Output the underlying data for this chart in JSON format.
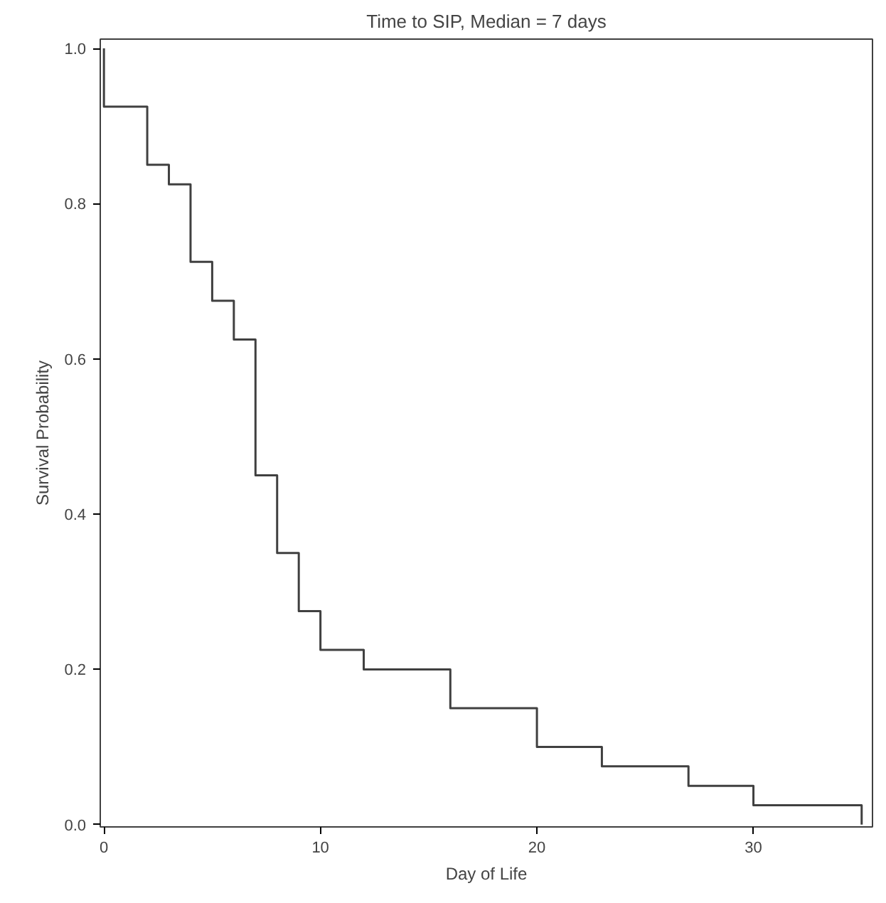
{
  "chart_data": {
    "type": "step",
    "title": "Time to SIP, Median = 7 days",
    "xlabel": "Day of Life",
    "ylabel": "Survival Probability",
    "x": [
      0,
      0,
      2,
      3,
      4,
      5,
      6,
      7,
      8,
      9,
      10,
      12,
      16,
      20,
      23,
      27,
      30,
      35
    ],
    "series": [
      {
        "color": "#404040",
        "values": [
          1.0,
          0.925,
          0.85,
          0.825,
          0.725,
          0.675,
          0.625,
          0.45,
          0.35,
          0.275,
          0.225,
          0.2,
          0.15,
          0.1,
          0.075,
          0.05,
          0.025,
          0.0
        ]
      }
    ],
    "xlim": [
      -0.17,
      35.5
    ],
    "ylim": [
      -0.003,
      1.012
    ],
    "xticks": [
      0,
      10,
      20,
      30
    ],
    "yticks": [
      {
        "value": 0,
        "label": "0.0"
      },
      {
        "value": 0.2,
        "label": "0.2"
      },
      {
        "value": 0.4,
        "label": "0.4"
      },
      {
        "value": 0.6,
        "label": "0.6"
      },
      {
        "value": 0.8,
        "label": "0.8"
      },
      {
        "value": 1,
        "label": "1.0"
      }
    ],
    "grid": false,
    "marker": "none",
    "line_style": "solid"
  }
}
